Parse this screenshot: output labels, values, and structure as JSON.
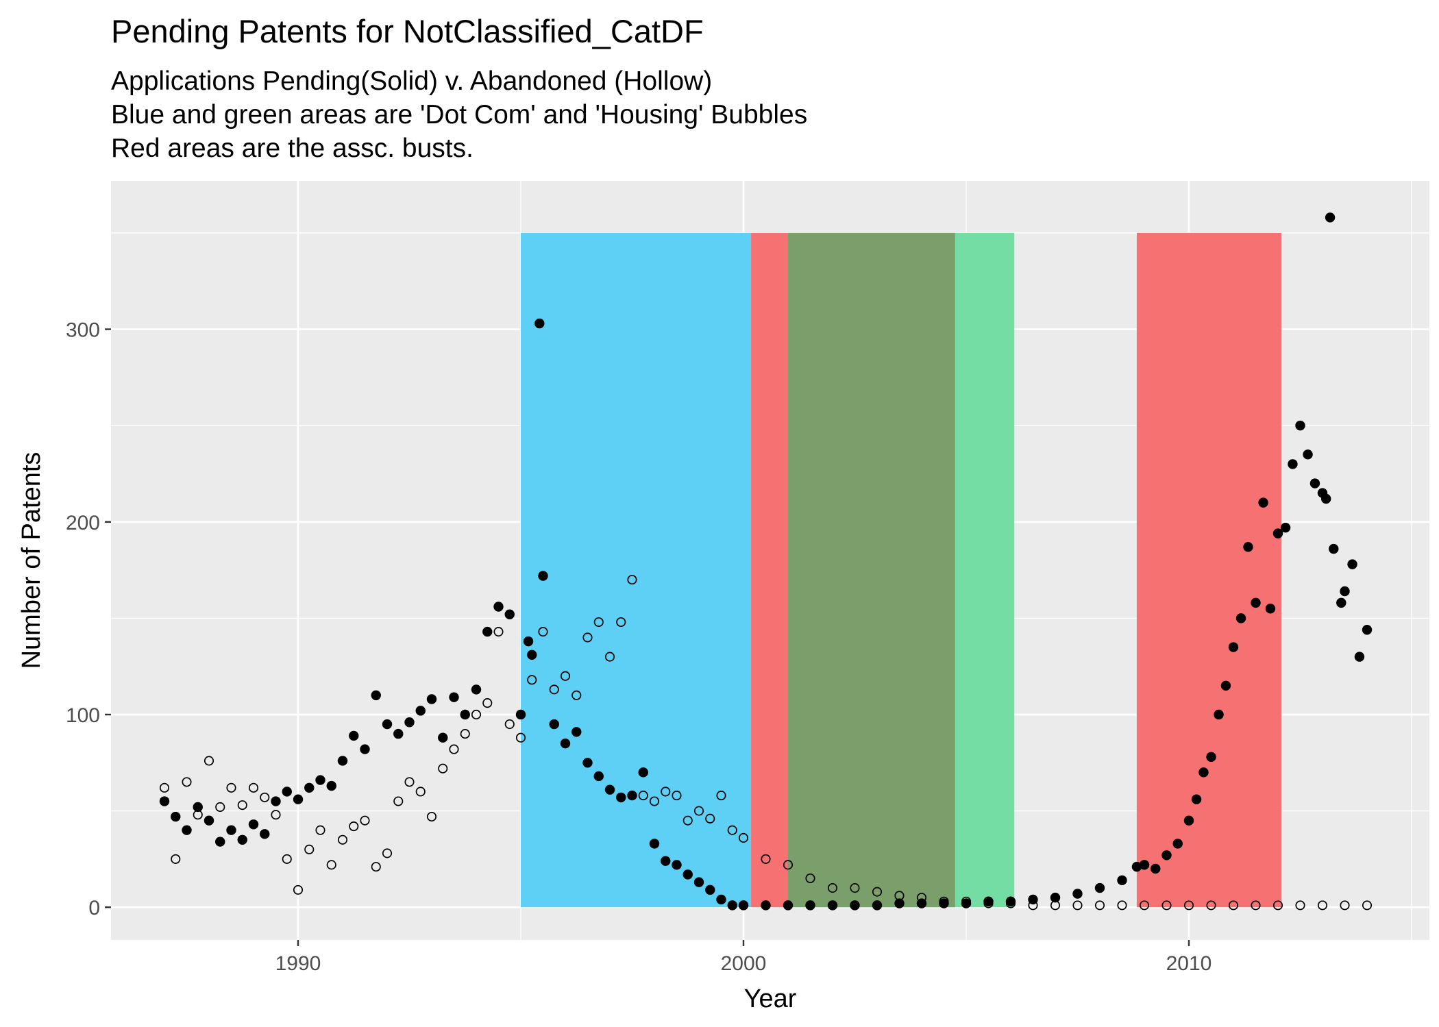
{
  "chart_data": {
    "type": "scatter",
    "title": "Pending Patents for NotClassified_CatDF",
    "subtitle": [
      "Applications Pending(Solid) v. Abandoned (Hollow)",
      "Blue and green areas are 'Dot Com' and 'Housing' Bubbles",
      "Red areas are the assc. busts."
    ],
    "xlabel": "Year",
    "ylabel": "Number of Patents",
    "xlim": [
      1985.8,
      2015.4
    ],
    "ylim": [
      -17,
      377
    ],
    "x_ticks": [
      1990,
      2000,
      2010
    ],
    "x_tick_labels": [
      "1990",
      "2000",
      "2010"
    ],
    "y_ticks": [
      0,
      100,
      200,
      300
    ],
    "y_tick_labels": [
      "0",
      "100",
      "200",
      "300"
    ],
    "grid": true,
    "background": "#ebebeb",
    "shaded_regions": [
      {
        "name": "Dot Com bubble",
        "x": [
          1995.0,
          2000.17
        ],
        "color": "#5fd0f5"
      },
      {
        "name": "Dot Com bust",
        "x": [
          2000.17,
          2001.0
        ],
        "color": "#f67272"
      },
      {
        "name": "Housing bubble",
        "x": [
          2001.0,
          2006.08
        ],
        "color": "#73dda4"
      },
      {
        "name": "Overlap",
        "x": [
          2001.0,
          2004.75
        ],
        "color": "#7a9f6b"
      },
      {
        "name": "Housing bust",
        "x": [
          2008.83,
          2012.08
        ],
        "color": "#f67272"
      }
    ],
    "series": [
      {
        "style": "solid",
        "x": [
          1987.0,
          1987.25,
          1987.5,
          1987.75,
          1988.0,
          1988.25,
          1988.5,
          1988.75,
          1989.0,
          1989.25,
          1989.5,
          1989.75,
          1990.0,
          1990.25,
          1990.5,
          1990.75,
          1991.0,
          1991.25,
          1991.5,
          1991.75,
          1992.0,
          1992.25,
          1992.5,
          1992.75,
          1993.0,
          1993.25,
          1993.5,
          1993.75,
          1994.0,
          1994.25,
          1994.5,
          1994.75,
          1995.0,
          1995.17,
          1995.25,
          1995.42,
          1995.5,
          1995.75,
          1996.0,
          1996.25,
          1996.5,
          1996.75,
          1997.0,
          1997.25,
          1997.5,
          1997.75,
          1998.0,
          1998.25,
          1998.5,
          1998.75,
          1999.0,
          1999.25,
          1999.5,
          1999.75,
          2000.0,
          2000.5,
          2001.0,
          2001.5,
          2002.0,
          2002.5,
          2003.0,
          2003.5,
          2004.0,
          2004.5,
          2005.0,
          2005.5,
          2006.0,
          2006.5,
          2007.0,
          2007.5,
          2008.0,
          2008.5,
          2008.83,
          2009.0,
          2009.25,
          2009.5,
          2009.75,
          2010.0,
          2010.17,
          2010.33,
          2010.5,
          2010.67,
          2010.83,
          2011.0,
          2011.17,
          2011.33,
          2011.5,
          2011.67,
          2011.83,
          2012.0,
          2012.17,
          2012.33,
          2012.5,
          2012.67,
          2012.83,
          2013.0,
          2013.08,
          2013.17,
          2013.25,
          2013.42,
          2013.5,
          2013.67,
          2013.83,
          2014.0
        ],
        "y": [
          55,
          47,
          40,
          52,
          45,
          34,
          40,
          35,
          43,
          38,
          55,
          60,
          56,
          62,
          66,
          63,
          76,
          89,
          82,
          110,
          95,
          90,
          96,
          102,
          108,
          88,
          109,
          100,
          113,
          143,
          156,
          152,
          100,
          138,
          131,
          303,
          172,
          95,
          85,
          91,
          75,
          68,
          61,
          57,
          58,
          70,
          33,
          24,
          22,
          17,
          13,
          9,
          4,
          1,
          1,
          1,
          1,
          1,
          1,
          1,
          1,
          2,
          2,
          2,
          2,
          3,
          3,
          4,
          5,
          7,
          10,
          14,
          21,
          22,
          20,
          27,
          33,
          45,
          56,
          70,
          78,
          100,
          115,
          135,
          150,
          187,
          158,
          210,
          155,
          194,
          197,
          230,
          250,
          235,
          220,
          215,
          212,
          358,
          186,
          158,
          164,
          178,
          130,
          144
        ]
      },
      {
        "style": "hollow",
        "x": [
          1987.0,
          1987.25,
          1987.5,
          1987.75,
          1988.0,
          1988.25,
          1988.5,
          1988.75,
          1989.0,
          1989.25,
          1989.5,
          1989.75,
          1990.0,
          1990.25,
          1990.5,
          1990.75,
          1991.0,
          1991.25,
          1991.5,
          1991.75,
          1992.0,
          1992.25,
          1992.5,
          1992.75,
          1993.0,
          1993.25,
          1993.5,
          1993.75,
          1994.0,
          1994.25,
          1994.5,
          1994.75,
          1995.0,
          1995.25,
          1995.5,
          1995.75,
          1996.0,
          1996.25,
          1996.5,
          1996.75,
          1997.0,
          1997.25,
          1997.5,
          1997.75,
          1998.0,
          1998.25,
          1998.5,
          1998.75,
          1999.0,
          1999.25,
          1999.5,
          1999.75,
          2000.0,
          2000.5,
          2001.0,
          2001.5,
          2002.0,
          2002.5,
          2003.0,
          2003.5,
          2004.0,
          2004.5,
          2005.0,
          2005.5,
          2006.0,
          2006.5,
          2007.0,
          2007.5,
          2008.0,
          2008.5,
          2009.0,
          2009.5,
          2010.0,
          2010.5,
          2011.0,
          2011.5,
          2012.0,
          2012.5,
          2013.0,
          2013.5,
          2014.0
        ],
        "y": [
          62,
          25,
          65,
          48,
          76,
          52,
          62,
          53,
          62,
          57,
          48,
          25,
          9,
          30,
          40,
          22,
          35,
          42,
          45,
          21,
          28,
          55,
          65,
          60,
          47,
          72,
          82,
          90,
          100,
          106,
          143,
          95,
          88,
          118,
          143,
          113,
          120,
          110,
          140,
          148,
          130,
          148,
          170,
          58,
          55,
          60,
          58,
          45,
          50,
          46,
          58,
          40,
          36,
          25,
          22,
          15,
          10,
          10,
          8,
          6,
          5,
          3,
          3,
          2,
          2,
          1,
          1,
          1,
          1,
          1,
          1,
          1,
          1,
          1,
          1,
          1,
          1,
          1,
          1,
          1,
          1
        ]
      }
    ]
  }
}
